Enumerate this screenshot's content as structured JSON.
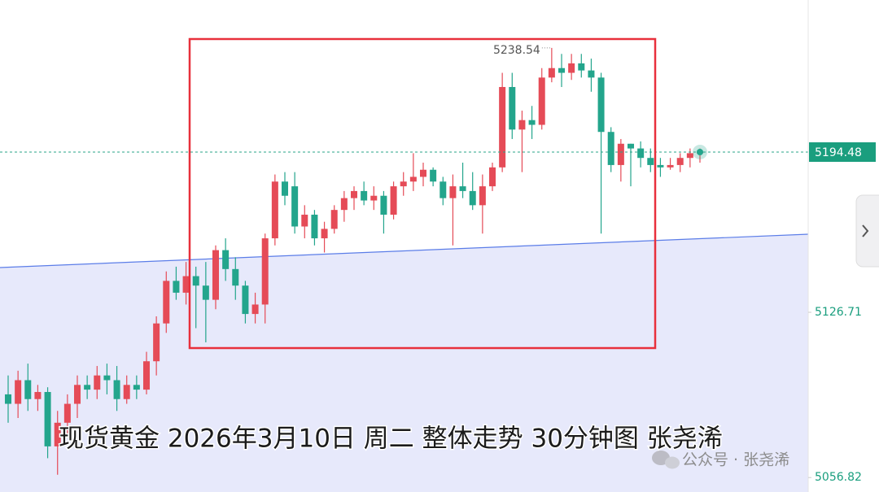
{
  "chart_data": {
    "type": "candlestick",
    "title": "现货黄金 2026年3月10日 周二 整体走势 30分钟图 张尧浠",
    "watermark": "公众号 · 张尧浠",
    "up_color": "#e54b57",
    "down_color": "#23a58c",
    "ylim": [
      5050.7,
      5258.8
    ],
    "yticks": [
      5126.71,
      5056.82
    ],
    "open": [
      5092,
      5088,
      5098,
      5090,
      5093,
      5070,
      5080,
      5088,
      5096,
      5094,
      5100,
      5098,
      5090,
      5096,
      5094,
      5106,
      5122,
      5140,
      5135,
      5142,
      5138,
      5132,
      5153,
      5145,
      5138,
      5126,
      5130,
      5158,
      5182,
      5180,
      5163,
      5168,
      5158,
      5162,
      5170,
      5175,
      5178,
      5174,
      5176,
      5168,
      5180,
      5182,
      5184,
      5187,
      5182,
      5175,
      5180,
      5178,
      5172,
      5180,
      5188,
      5222,
      5204,
      5208,
      5206,
      5226,
      5230,
      5228,
      5232,
      5229,
      5226,
      5203,
      5189,
      5198,
      5196,
      5192,
      5189,
      5188,
      5189,
      5192,
      5194
    ],
    "high": [
      5100,
      5102,
      5105,
      5096,
      5095,
      5085,
      5092,
      5100,
      5100,
      5104,
      5105,
      5104,
      5100,
      5100,
      5110,
      5125,
      5144,
      5146,
      5148,
      5146,
      5148,
      5155,
      5158,
      5150,
      5140,
      5135,
      5160,
      5185,
      5186,
      5186,
      5172,
      5170,
      5165,
      5172,
      5178,
      5180,
      5182,
      5180,
      5178,
      5182,
      5186,
      5194,
      5190,
      5188,
      5184,
      5185,
      5190,
      5186,
      5185,
      5190,
      5228,
      5228,
      5212,
      5214,
      5230,
      5238.54,
      5236,
      5236,
      5236,
      5234,
      5228,
      5205,
      5200,
      5198,
      5199,
      5196,
      5192,
      5192,
      5194,
      5196,
      5196
    ],
    "low": [
      5080,
      5082,
      5085,
      5085,
      5065,
      5058,
      5075,
      5082,
      5090,
      5090,
      5092,
      5085,
      5088,
      5090,
      5092,
      5100,
      5118,
      5132,
      5130,
      5120,
      5114,
      5128,
      5140,
      5132,
      5122,
      5122,
      5122,
      5155,
      5172,
      5160,
      5158,
      5155,
      5152,
      5160,
      5165,
      5170,
      5172,
      5170,
      5160,
      5166,
      5176,
      5178,
      5180,
      5180,
      5172,
      5155,
      5175,
      5170,
      5160,
      5178,
      5186,
      5200,
      5186,
      5200,
      5204,
      5224,
      5222,
      5225,
      5226,
      5220,
      5160,
      5186,
      5182,
      5180,
      5188,
      5186,
      5184,
      5187,
      5186,
      5188,
      5190
    ],
    "close": [
      5088,
      5098,
      5090,
      5093,
      5070,
      5080,
      5088,
      5096,
      5094,
      5100,
      5098,
      5090,
      5096,
      5094,
      5106,
      5122,
      5140,
      5135,
      5142,
      5138,
      5132,
      5153,
      5145,
      5138,
      5126,
      5130,
      5158,
      5182,
      5176,
      5163,
      5168,
      5158,
      5162,
      5170,
      5175,
      5178,
      5174,
      5176,
      5168,
      5180,
      5182,
      5184,
      5187,
      5182,
      5175,
      5180,
      5178,
      5172,
      5180,
      5188,
      5222,
      5204,
      5208,
      5206,
      5226,
      5230,
      5228,
      5232,
      5229,
      5226,
      5203,
      5189,
      5198,
      5196,
      5192,
      5189,
      5188,
      5189,
      5192,
      5194,
      5194.48
    ]
  }
}
